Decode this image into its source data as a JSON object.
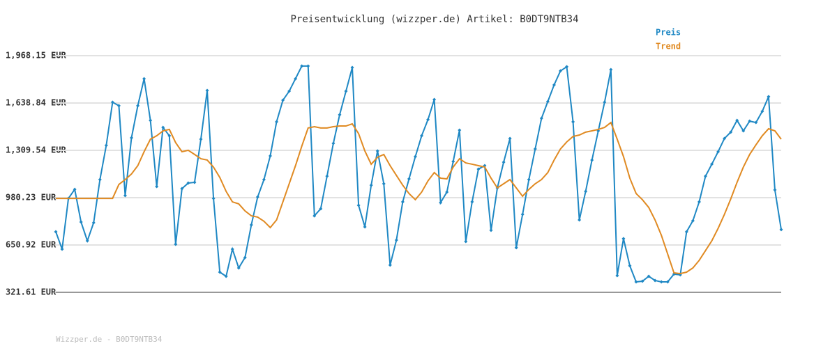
{
  "chart_data": {
    "type": "line",
    "title": "Preisentwicklung (wizzper.de) Artikel: B0DT9NTB34",
    "footer": "Wizzper.de - B0DT9NTB34",
    "ylim": [
      321.61,
      1968.15
    ],
    "yticks": [
      {
        "value": 321.61,
        "label": "321.61 EUR"
      },
      {
        "value": 650.92,
        "label": "650.92 EUR"
      },
      {
        "value": 980.23,
        "label": "980.23 EUR"
      },
      {
        "value": 1309.54,
        "label": "1,309.54 EUR"
      },
      {
        "value": 1638.84,
        "label": "1,638.84 EUR"
      },
      {
        "value": 1968.15,
        "label": "1,968.15 EUR"
      }
    ],
    "grid": true,
    "legend": "top-right",
    "series": [
      {
        "name": "Preis",
        "color": "#1f88c4",
        "markers": true,
        "values": [
          743,
          622,
          975,
          1038,
          811,
          680,
          806,
          1106,
          1344,
          1644,
          1620,
          995,
          1397,
          1620,
          1808,
          1518,
          1058,
          1469,
          1411,
          656,
          1043,
          1082,
          1087,
          1387,
          1726,
          975,
          462,
          433,
          622,
          491,
          564,
          791,
          985,
          1106,
          1271,
          1508,
          1658,
          1721,
          1808,
          1896,
          1896,
          854,
          903,
          1130,
          1358,
          1557,
          1721,
          1886,
          927,
          777,
          1067,
          1305,
          1077,
          511,
          685,
          951,
          1111,
          1266,
          1411,
          1523,
          1663,
          946,
          1019,
          1232,
          1450,
          675,
          951,
          1179,
          1203,
          753,
          1048,
          1227,
          1392,
          632,
          864,
          1106,
          1319,
          1532,
          1649,
          1765,
          1862,
          1891,
          1508,
          825,
          1024,
          1242,
          1445,
          1644,
          1871,
          438,
          695,
          506,
          394,
          399,
          433,
          404,
          394,
          394,
          448,
          443,
          743,
          820,
          951,
          1130,
          1213,
          1300,
          1392,
          1436,
          1518,
          1445,
          1513,
          1503,
          1581,
          1683,
          1034,
          758
        ]
      },
      {
        "name": "Trend",
        "color": "#e08a22",
        "markers": false,
        "values": [
          975,
          975,
          975,
          975,
          975,
          975,
          975,
          975,
          975,
          975,
          1072,
          1106,
          1145,
          1203,
          1300,
          1387,
          1411,
          1445,
          1455,
          1363,
          1300,
          1310,
          1281,
          1251,
          1242,
          1193,
          1121,
          1024,
          951,
          937,
          888,
          854,
          845,
          816,
          772,
          825,
          951,
          1077,
          1203,
          1339,
          1465,
          1474,
          1465,
          1465,
          1474,
          1479,
          1479,
          1494,
          1426,
          1305,
          1213,
          1261,
          1281,
          1203,
          1135,
          1067,
          1009,
          966,
          1019,
          1097,
          1155,
          1116,
          1111,
          1193,
          1251,
          1222,
          1213,
          1203,
          1193,
          1116,
          1048,
          1077,
          1106,
          1048,
          990,
          1038,
          1077,
          1106,
          1155,
          1242,
          1319,
          1368,
          1406,
          1416,
          1436,
          1445,
          1455,
          1469,
          1503,
          1387,
          1266,
          1116,
          1009,
          966,
          912,
          825,
          719,
          588,
          457,
          452,
          462,
          491,
          544,
          612,
          680,
          767,
          864,
          971,
          1087,
          1193,
          1281,
          1348,
          1411,
          1460,
          1445,
          1387
        ]
      }
    ]
  }
}
